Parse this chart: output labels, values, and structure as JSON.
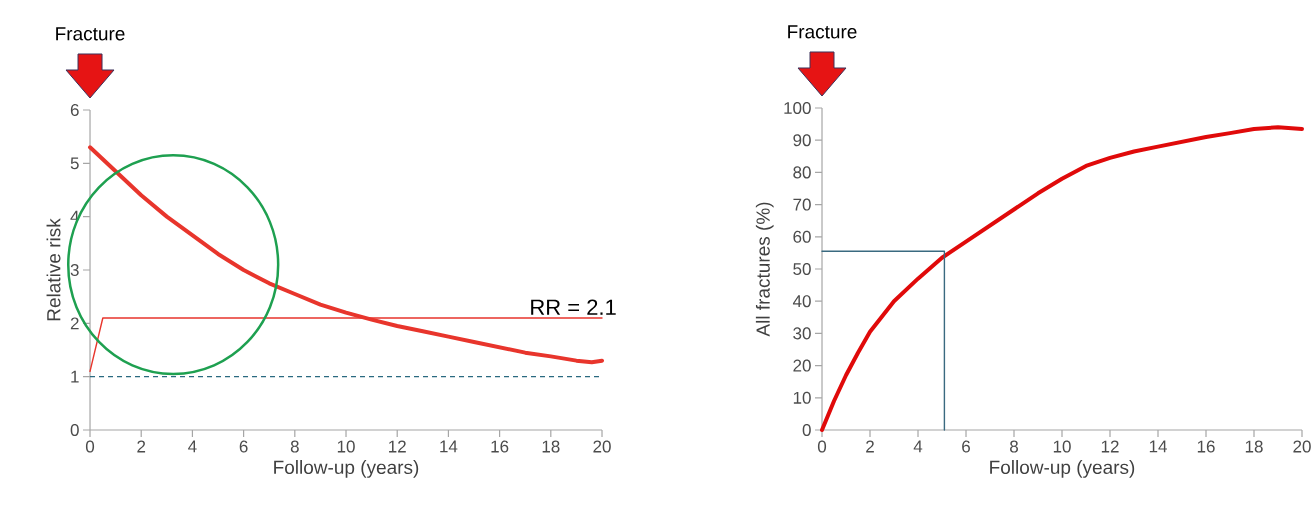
{
  "chart_data": [
    {
      "type": "line",
      "xlabel": "Follow-up (years)",
      "ylabel": "Relative risk",
      "xlim": [
        0,
        20
      ],
      "ylim": [
        0,
        6
      ],
      "xticks": [
        0,
        2,
        4,
        6,
        8,
        10,
        12,
        14,
        16,
        18,
        20
      ],
      "yticks": [
        0,
        1,
        2,
        3,
        4,
        5,
        6
      ],
      "series": [
        {
          "color": "#e8352c",
          "x": [
            0,
            1,
            2,
            3,
            4,
            5,
            6,
            7,
            8,
            9,
            10,
            11,
            12,
            13,
            14,
            15,
            16,
            17,
            18,
            19,
            19.6,
            20
          ],
          "values": [
            5.3,
            4.85,
            4.4,
            4.0,
            3.65,
            3.3,
            3.0,
            2.75,
            2.55,
            2.35,
            2.2,
            2.07,
            1.95,
            1.85,
            1.75,
            1.65,
            1.55,
            1.45,
            1.38,
            1.3,
            1.27,
            1.3
          ]
        },
        {
          "color": "#e8352c",
          "x": [
            0,
            0.5,
            20
          ],
          "values": [
            1.1,
            2.1,
            2.1
          ]
        }
      ],
      "ref_lines": [
        {
          "axis": "y",
          "value": 1,
          "color": "#2a6a80",
          "line_style": "dashed"
        }
      ],
      "annotations": [
        "Fracture",
        {
          "text": "RR = 2.1",
          "x": 20,
          "y": 2.1
        }
      ]
    },
    {
      "type": "line",
      "xlabel": "Follow-up (years)",
      "ylabel": "All fractures (%)",
      "xlim": [
        0,
        20
      ],
      "ylim": [
        0,
        100
      ],
      "xticks": [
        0,
        2,
        4,
        6,
        8,
        10,
        12,
        14,
        16,
        18,
        20
      ],
      "yticks": [
        0,
        10,
        20,
        30,
        40,
        50,
        60,
        70,
        80,
        90,
        100
      ],
      "series": [
        {
          "color": "#e00a0a",
          "x": [
            0,
            0.5,
            1,
            1.5,
            2,
            3,
            4,
            5,
            6,
            7,
            8,
            9,
            10,
            11,
            12,
            13,
            14,
            15,
            16,
            17,
            18,
            19,
            20
          ],
          "values": [
            0,
            9,
            17,
            24,
            30.5,
            40,
            47,
            53.5,
            58.5,
            63.5,
            68.5,
            73.5,
            78,
            82,
            84.5,
            86.5,
            88,
            89.5,
            91,
            92.2,
            93.5,
            94,
            93.5
          ]
        },
        {
          "color": "#3a6a80",
          "x": [
            0,
            5.1,
            5.1
          ],
          "values": [
            55.5,
            55.5,
            0
          ]
        }
      ],
      "annotations": [
        "Fracture"
      ]
    }
  ]
}
